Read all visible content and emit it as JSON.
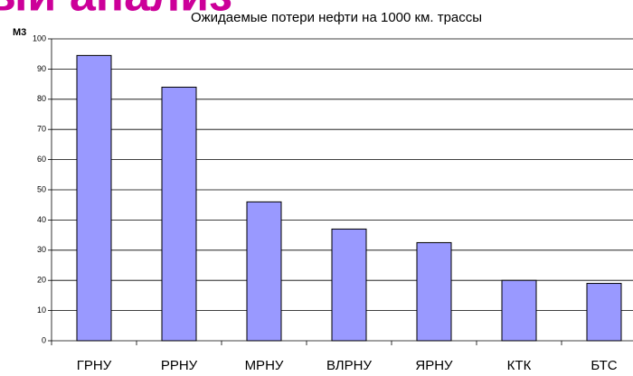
{
  "header_fragment": "ый анализ",
  "chart_data": {
    "type": "bar",
    "title": "Ожидаемые потери нефти на 1000 км. трассы",
    "y_label": "М3",
    "categories": [
      "ГРНУ",
      "РРНУ",
      "МРНУ",
      "ВЛРНУ",
      "ЯРНУ",
      "КТК",
      "БТС"
    ],
    "values": [
      94.5,
      84,
      46,
      37,
      32.5,
      20,
      19
    ],
    "color": "#9999ff",
    "ylim": [
      0,
      100
    ],
    "yticks": [
      0,
      10,
      20,
      30,
      40,
      50,
      60,
      70,
      80,
      90,
      100
    ],
    "grid": true
  }
}
